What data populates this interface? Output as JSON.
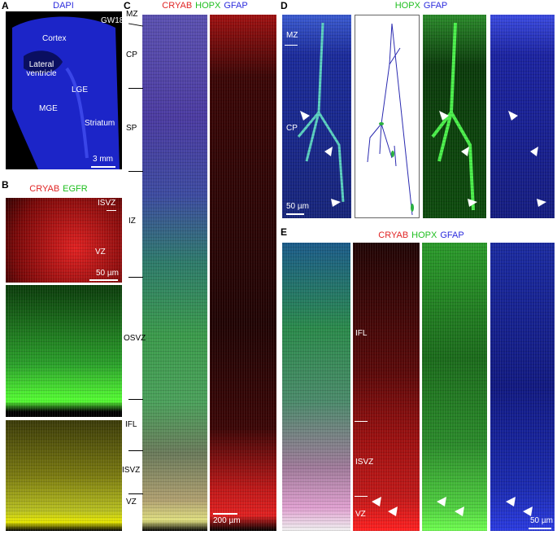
{
  "panels": [
    {
      "letter": "A",
      "title": [
        {
          "text": "DAPI",
          "color": "#2b2bdd"
        }
      ],
      "labels": [
        "GW18",
        "Cortex",
        "Lateral ventricle",
        "LGE",
        "MGE",
        "Striatum"
      ],
      "scale_bar": "3 mm"
    },
    {
      "letter": "B",
      "title": [
        {
          "text": "CRYAB",
          "color": "#e02424"
        },
        {
          "text": "EGFR",
          "color": "#1fbf1f"
        }
      ],
      "labels": [
        "ISVZ",
        "VZ"
      ],
      "scale_bar": "50 µm"
    },
    {
      "letter": "C",
      "title": [
        {
          "text": "CRYAB",
          "color": "#e02424"
        },
        {
          "text": "HOPX",
          "color": "#1fbf1f"
        },
        {
          "text": "GFAP",
          "color": "#2b2bdd"
        }
      ],
      "labels": [
        "MZ",
        "CP",
        "SP",
        "IZ",
        "OSVZ",
        "IFL",
        "ISVZ",
        "VZ"
      ],
      "scale_bar": "200 µm"
    },
    {
      "letter": "D",
      "title": [
        {
          "text": "HOPX",
          "color": "#1fbf1f"
        },
        {
          "text": "GFAP",
          "color": "#2b2bdd"
        }
      ],
      "labels": [
        "MZ",
        "CP"
      ],
      "scale_bar": "50 µm"
    },
    {
      "letter": "E",
      "title": [
        {
          "text": "CRYAB",
          "color": "#e02424"
        },
        {
          "text": "HOPX",
          "color": "#1fbf1f"
        },
        {
          "text": "GFAP",
          "color": "#2b2bdd"
        }
      ],
      "labels": [
        "IFL",
        "ISVZ",
        "VZ"
      ],
      "scale_bar": "50 µm"
    }
  ]
}
